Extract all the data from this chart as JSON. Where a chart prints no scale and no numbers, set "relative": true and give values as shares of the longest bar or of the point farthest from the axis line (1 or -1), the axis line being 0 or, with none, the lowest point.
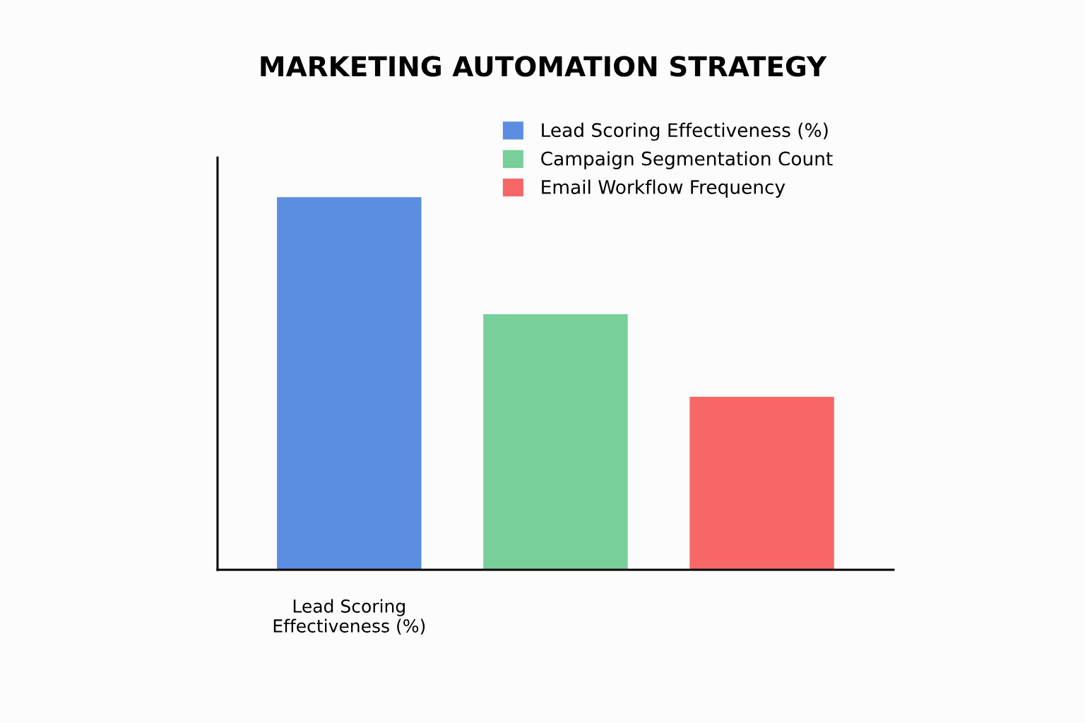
{
  "chart_data": {
    "type": "bar",
    "title": "MARKETING AUTOMATION STRATEGY",
    "categories": [
      "Lead Scoring\nEffectiveness (%)",
      null,
      null
    ],
    "relative": true,
    "stacked": true,
    "series": [
      {
        "name": "Lead Scoring Effectiveness (%)",
        "color": "#5b8ee0",
        "values": [
          1,
          null,
          null
        ]
      },
      {
        "name": "Campaign Segmentation Count",
        "color": "#78cf99",
        "values": [
          null,
          0.686,
          null
        ]
      },
      {
        "name": "Email Workflow Frequency",
        "color": "#f76767",
        "values": [
          null,
          null,
          0.464
        ]
      }
    ],
    "legend": "top right",
    "grid": false
  }
}
